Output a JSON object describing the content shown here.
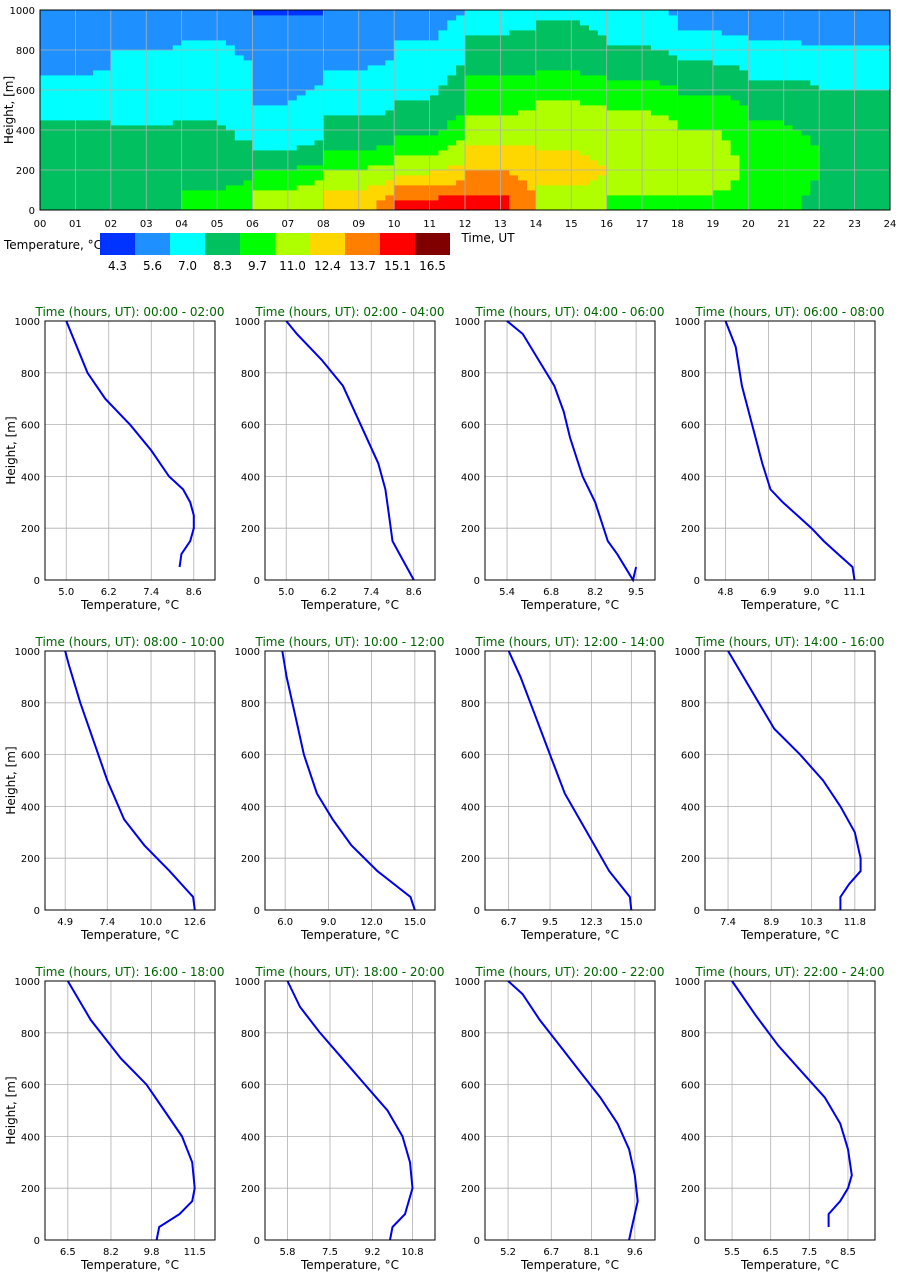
{
  "colors": {
    "profile_line": "#0000ee",
    "grid": "#b0b0b0",
    "title_green": "#006400"
  },
  "chart_data": [
    {
      "type": "heatmap",
      "title": "",
      "xlabel": "Time, UT",
      "ylabel": "Height, [m]",
      "xlim": [
        0,
        24
      ],
      "ylim": [
        0,
        1000
      ],
      "x_ticks": [
        "00",
        "01",
        "02",
        "03",
        "04",
        "05",
        "06",
        "07",
        "08",
        "09",
        "10",
        "11",
        "12",
        "13",
        "14",
        "15",
        "16",
        "17",
        "18",
        "19",
        "20",
        "21",
        "22",
        "23",
        "24"
      ],
      "y_ticks": [
        "0",
        "200",
        "400",
        "600",
        "800",
        "1000"
      ],
      "grid": true,
      "colorbar": {
        "label": "Temperature, °C",
        "labels": [
          "4.3",
          "5.6",
          "7.0",
          "8.3",
          "9.7",
          "11.0",
          "12.4",
          "13.7",
          "15.1",
          "16.5"
        ],
        "colors": [
          "#0033ff",
          "#1e90ff",
          "#00ffff",
          "#00c060",
          "#00ff00",
          "#b0ff00",
          "#ffd700",
          "#ff7f00",
          "#ff0000",
          "#800000"
        ]
      },
      "z_note_units": "°C",
      "rows_heights": [
        0,
        50,
        100,
        150,
        200,
        250,
        300,
        350,
        400,
        450,
        500,
        550,
        600,
        650,
        700,
        750,
        800,
        850,
        900,
        950,
        1000
      ],
      "hour_centers": [
        0.5,
        1.5,
        2.5,
        3.5,
        4.5,
        5.5,
        6.5,
        7.5,
        8.5,
        9.5,
        10.5,
        11.5,
        12.5,
        13.5,
        14.5,
        15.5,
        16.5,
        17.5,
        18.5,
        19.5,
        20.5,
        21.5,
        22.5,
        23.5
      ],
      "profiles_by_hour_source": "panels"
    },
    {
      "type": "line",
      "title": "Time (hours, UT): 00:00 - 02:00",
      "xlabel": "Temperature, °C",
      "ylabel": "Height, [m]",
      "x_ticks": [
        "5.0",
        "6.2",
        "7.4",
        "8.6"
      ],
      "xlim": [
        4.4,
        9.2
      ],
      "ylim": [
        0,
        1000
      ],
      "y_ticks": [
        "0",
        "200",
        "400",
        "600",
        "800",
        "1000"
      ],
      "grid": true,
      "series": [
        {
          "x": [
            8.2,
            8.25,
            8.5,
            8.6,
            8.6,
            8.5,
            8.3,
            7.9,
            7.4,
            6.8,
            6.1,
            5.6,
            5.0
          ],
          "y": [
            50,
            100,
            150,
            200,
            250,
            300,
            350,
            400,
            500,
            600,
            700,
            800,
            1000
          ]
        }
      ]
    },
    {
      "type": "line",
      "title": "Time (hours, UT): 02:00 - 04:00",
      "xlabel": "Temperature, °C",
      "ylabel": "",
      "x_ticks": [
        "5.0",
        "6.2",
        "7.4",
        "8.6"
      ],
      "xlim": [
        4.4,
        9.2
      ],
      "ylim": [
        0,
        1000
      ],
      "y_ticks": [
        "0",
        "200",
        "400",
        "600",
        "800",
        "1000"
      ],
      "grid": true,
      "series": [
        {
          "x": [
            8.6,
            8.2,
            8.0,
            7.9,
            7.8,
            7.6,
            7.1,
            6.6,
            6.0,
            5.3,
            5.0
          ],
          "y": [
            0,
            100,
            150,
            250,
            350,
            450,
            600,
            750,
            850,
            950,
            1000
          ]
        }
      ]
    },
    {
      "type": "line",
      "title": "Time (hours, UT): 04:00 - 06:00",
      "xlabel": "Temperature, °C",
      "ylabel": "",
      "x_ticks": [
        "5.4",
        "6.8",
        "8.2",
        "9.5"
      ],
      "xlim": [
        4.7,
        10.1
      ],
      "ylim": [
        0,
        1000
      ],
      "y_ticks": [
        "0",
        "200",
        "400",
        "600",
        "800",
        "1000"
      ],
      "grid": true,
      "series": [
        {
          "x": [
            9.5,
            9.4,
            8.9,
            8.6,
            8.2,
            7.8,
            7.4,
            7.2,
            6.9,
            6.4,
            5.9,
            5.4
          ],
          "y": [
            50,
            0,
            100,
            150,
            300,
            400,
            550,
            650,
            750,
            850,
            950,
            1000
          ]
        }
      ]
    },
    {
      "type": "line",
      "title": "Time (hours, UT): 06:00 - 08:00",
      "xlabel": "Temperature, °C",
      "ylabel": "",
      "x_ticks": [
        "4.8",
        "6.9",
        "9.0",
        "11.1"
      ],
      "xlim": [
        3.8,
        12.1
      ],
      "ylim": [
        0,
        1000
      ],
      "y_ticks": [
        "0",
        "200",
        "400",
        "600",
        "800",
        "1000"
      ],
      "grid": true,
      "series": [
        {
          "x": [
            11.1,
            11.0,
            10.3,
            9.6,
            9.0,
            8.3,
            7.6,
            7.0,
            6.6,
            6.1,
            5.6,
            5.3,
            4.8
          ],
          "y": [
            0,
            50,
            100,
            150,
            200,
            250,
            300,
            350,
            450,
            600,
            750,
            900,
            1000
          ]
        }
      ]
    },
    {
      "type": "line",
      "title": "Time (hours, UT): 08:00 - 10:00",
      "xlabel": "Temperature, °C",
      "ylabel": "Height, [m]",
      "x_ticks": [
        "4.9",
        "7.4",
        "10.0",
        "12.6"
      ],
      "xlim": [
        3.7,
        13.8
      ],
      "ylim": [
        0,
        1000
      ],
      "y_ticks": [
        "0",
        "200",
        "400",
        "600",
        "800",
        "1000"
      ],
      "grid": true,
      "series": [
        {
          "x": [
            12.6,
            12.5,
            11.1,
            9.6,
            8.4,
            7.4,
            6.6,
            5.8,
            5.1,
            4.9
          ],
          "y": [
            0,
            50,
            150,
            250,
            350,
            500,
            650,
            800,
            950,
            1000
          ]
        }
      ]
    },
    {
      "type": "line",
      "title": "Time (hours, UT): 10:00 - 12:00",
      "xlabel": "Temperature, °C",
      "ylabel": "",
      "x_ticks": [
        "6.0",
        "9.0",
        "12.0",
        "15.0"
      ],
      "xlim": [
        4.6,
        16.4
      ],
      "ylim": [
        0,
        1000
      ],
      "y_ticks": [
        "0",
        "200",
        "400",
        "600",
        "800",
        "1000"
      ],
      "grid": true,
      "series": [
        {
          "x": [
            15.0,
            14.7,
            12.4,
            10.6,
            9.3,
            8.2,
            7.3,
            6.7,
            6.1,
            5.8
          ],
          "y": [
            0,
            50,
            150,
            250,
            350,
            450,
            600,
            750,
            900,
            1000
          ]
        }
      ]
    },
    {
      "type": "line",
      "title": "Time (hours, UT): 12:00 - 14:00",
      "xlabel": "Temperature, °C",
      "ylabel": "",
      "x_ticks": [
        "6.7",
        "9.5",
        "12.3",
        "15.0"
      ],
      "xlim": [
        5.1,
        16.6
      ],
      "ylim": [
        0,
        1000
      ],
      "y_ticks": [
        "0",
        "200",
        "400",
        "600",
        "800",
        "1000"
      ],
      "grid": true,
      "series": [
        {
          "x": [
            15.0,
            14.9,
            13.5,
            12.0,
            10.5,
            9.5,
            8.5,
            7.5,
            6.7
          ],
          "y": [
            0,
            50,
            150,
            300,
            450,
            600,
            750,
            900,
            1000
          ]
        }
      ]
    },
    {
      "type": "line",
      "title": "Time (hours, UT): 14:00 - 16:00",
      "xlabel": "Temperature, °C",
      "ylabel": "",
      "x_ticks": [
        "7.4",
        "8.9",
        "10.3",
        "11.8"
      ],
      "xlim": [
        6.6,
        12.5
      ],
      "ylim": [
        0,
        1000
      ],
      "y_ticks": [
        "0",
        "200",
        "400",
        "600",
        "800",
        "1000"
      ],
      "grid": true,
      "series": [
        {
          "x": [
            11.3,
            11.3,
            11.6,
            12.0,
            12.0,
            11.8,
            11.3,
            10.7,
            9.9,
            9.0,
            8.2,
            7.4
          ],
          "y": [
            0,
            50,
            100,
            150,
            200,
            300,
            400,
            500,
            600,
            700,
            850,
            1000
          ]
        }
      ]
    },
    {
      "type": "line",
      "title": "Time (hours, UT): 16:00 - 18:00",
      "xlabel": "Temperature, °C",
      "ylabel": "Height, [m]",
      "x_ticks": [
        "6.5",
        "8.2",
        "9.8",
        "11.5"
      ],
      "xlim": [
        5.6,
        12.3
      ],
      "ylim": [
        0,
        1000
      ],
      "y_ticks": [
        "0",
        "200",
        "400",
        "600",
        "800",
        "1000"
      ],
      "grid": true,
      "series": [
        {
          "x": [
            10.0,
            10.1,
            10.9,
            11.4,
            11.5,
            11.4,
            11.0,
            10.3,
            9.6,
            8.6,
            7.4,
            6.5
          ],
          "y": [
            0,
            50,
            100,
            150,
            200,
            300,
            400,
            500,
            600,
            700,
            850,
            1000
          ]
        }
      ]
    },
    {
      "type": "line",
      "title": "Time (hours, UT): 18:00 - 20:00",
      "xlabel": "Temperature, °C",
      "ylabel": "",
      "x_ticks": [
        "5.8",
        "7.5",
        "9.2",
        "10.8"
      ],
      "xlim": [
        4.9,
        11.7
      ],
      "ylim": [
        0,
        1000
      ],
      "y_ticks": [
        "0",
        "200",
        "400",
        "600",
        "800",
        "1000"
      ],
      "grid": true,
      "series": [
        {
          "x": [
            9.9,
            10.0,
            10.5,
            10.8,
            10.7,
            10.4,
            9.8,
            8.9,
            8.0,
            7.1,
            6.3,
            5.8
          ],
          "y": [
            0,
            50,
            100,
            200,
            300,
            400,
            500,
            600,
            700,
            800,
            900,
            1000
          ]
        }
      ]
    },
    {
      "type": "line",
      "title": "Time (hours, UT): 20:00 - 22:00",
      "xlabel": "Temperature, °C",
      "ylabel": "",
      "x_ticks": [
        "5.2",
        "6.7",
        "8.1",
        "9.6"
      ],
      "xlim": [
        4.4,
        10.3
      ],
      "ylim": [
        0,
        1000
      ],
      "y_ticks": [
        "0",
        "200",
        "400",
        "600",
        "800",
        "1000"
      ],
      "grid": true,
      "series": [
        {
          "x": [
            9.4,
            9.5,
            9.7,
            9.6,
            9.4,
            9.0,
            8.4,
            7.7,
            7.0,
            6.3,
            5.7,
            5.2
          ],
          "y": [
            0,
            50,
            150,
            250,
            350,
            450,
            550,
            650,
            750,
            850,
            950,
            1000
          ]
        }
      ]
    },
    {
      "type": "line",
      "title": "Time (hours, UT): 22:00 - 24:00",
      "xlabel": "Temperature, °C",
      "ylabel": "",
      "x_ticks": [
        "5.5",
        "6.5",
        "7.5",
        "8.5"
      ],
      "xlim": [
        4.8,
        9.2
      ],
      "ylim": [
        0,
        1000
      ],
      "y_ticks": [
        "0",
        "200",
        "400",
        "600",
        "800",
        "1000"
      ],
      "grid": true,
      "series": [
        {
          "x": [
            8.0,
            8.0,
            8.3,
            8.5,
            8.6,
            8.5,
            8.3,
            7.9,
            7.3,
            6.7,
            6.1,
            5.5
          ],
          "y": [
            50,
            100,
            150,
            200,
            250,
            350,
            450,
            550,
            650,
            750,
            870,
            1000
          ]
        }
      ]
    }
  ]
}
